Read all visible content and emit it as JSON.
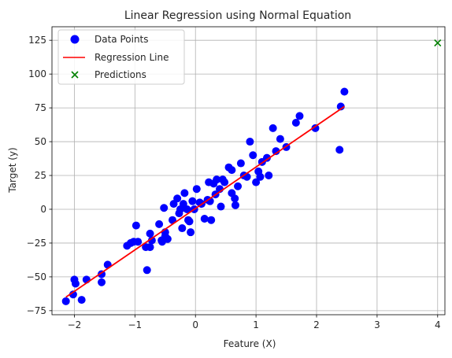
{
  "chart_data": {
    "type": "scatter",
    "title": "Linear Regression using Normal Equation",
    "xlabel": "Feature (X)",
    "ylabel": "Target (y)",
    "xlim": [
      -2.37,
      4.12
    ],
    "ylim": [
      -78,
      135
    ],
    "xticks": [
      -2,
      -1,
      0,
      1,
      2,
      3,
      4
    ],
    "yticks": [
      -75,
      -50,
      -25,
      0,
      25,
      50,
      75,
      100,
      125
    ],
    "grid": true,
    "legend_position": "top-left",
    "colors": {
      "points": "#0000ff",
      "line": "#ff0000",
      "predictions": "#008000"
    },
    "series": [
      {
        "name": "Data Points",
        "kind": "scatter",
        "x": [
          -2.14,
          -2.02,
          -2.0,
          -1.98,
          -1.88,
          -1.8,
          -1.55,
          -1.55,
          -1.45,
          -1.13,
          -1.07,
          -1.02,
          -0.98,
          -0.95,
          -0.82,
          -0.8,
          -0.75,
          -0.75,
          -0.72,
          -0.6,
          -0.56,
          -0.55,
          -0.52,
          -0.5,
          -0.5,
          -0.46,
          -0.38,
          -0.36,
          -0.3,
          -0.27,
          -0.25,
          -0.22,
          -0.2,
          -0.18,
          -0.14,
          -0.12,
          -0.1,
          -0.08,
          -0.05,
          -0.02,
          0.02,
          0.07,
          0.1,
          0.15,
          0.2,
          0.22,
          0.24,
          0.26,
          0.3,
          0.33,
          0.35,
          0.4,
          0.42,
          0.45,
          0.48,
          0.55,
          0.6,
          0.6,
          0.65,
          0.66,
          0.7,
          0.75,
          0.8,
          0.85,
          0.9,
          0.95,
          1.0,
          1.04,
          1.07,
          1.1,
          1.18,
          1.21,
          1.28,
          1.33,
          1.4,
          1.5,
          1.66,
          1.72,
          1.98,
          2.38,
          2.4,
          2.46
        ],
        "y": [
          -68,
          -63,
          -52,
          -55,
          -67,
          -52,
          -54,
          -48,
          -41,
          -27,
          -25,
          -24,
          -12,
          -24,
          -28,
          -45,
          -18,
          -28,
          -23,
          -11,
          -23,
          -24,
          1,
          -17,
          -20,
          -22,
          -8,
          4,
          8,
          -3,
          0,
          -14,
          4,
          12,
          0,
          -8,
          -9,
          -17,
          6,
          0,
          15,
          5,
          4,
          -7,
          7,
          20,
          6,
          -8,
          19,
          11,
          22,
          15,
          2,
          22,
          20,
          31,
          29,
          12,
          8,
          3,
          17,
          34,
          25,
          24,
          50,
          40,
          20,
          28,
          24,
          35,
          38,
          25,
          60,
          43,
          52,
          46,
          64,
          69,
          60,
          44,
          76,
          87
        ]
      },
      {
        "name": "Regression Line",
        "kind": "line",
        "x": [
          -2.14,
          2.46
        ],
        "y": [
          -65,
          76
        ]
      },
      {
        "name": "Predictions",
        "kind": "scatter-x",
        "x": [
          4
        ],
        "y": [
          123
        ]
      }
    ]
  }
}
